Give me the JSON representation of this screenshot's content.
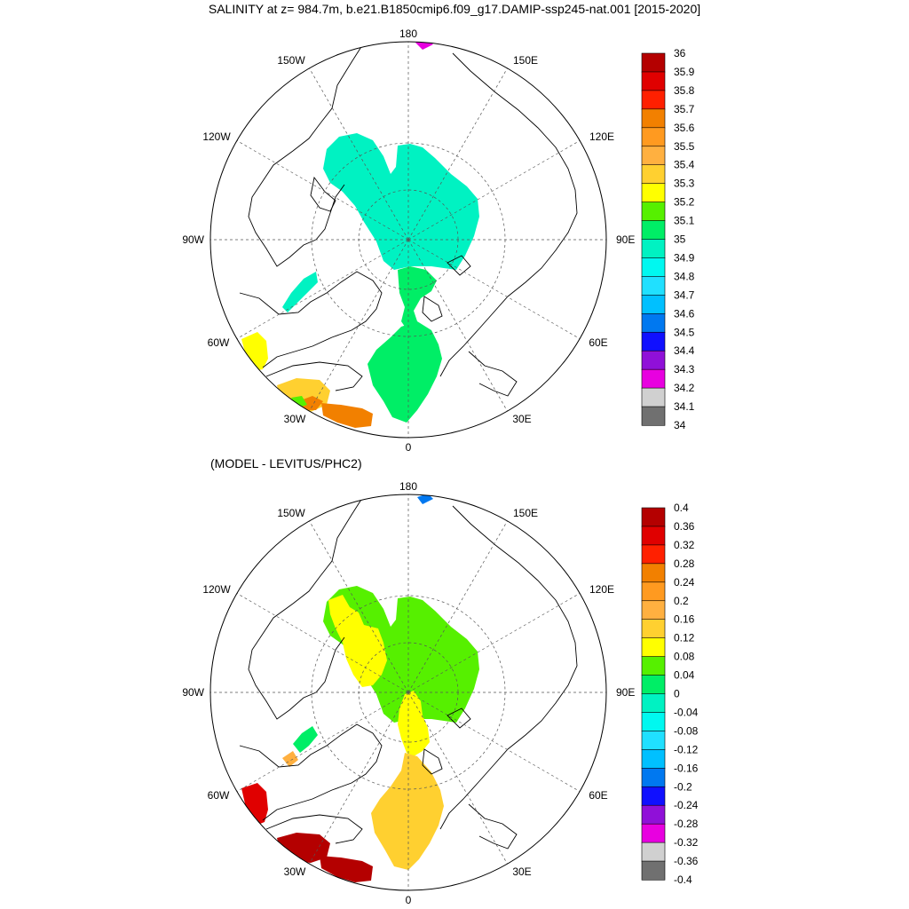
{
  "panels": [
    {
      "id": "top",
      "title": "SALINITY at z= 984.7m, b.e21.B1850cmip6.f09_g17.DAMIP-ssp245-nat.001 [2015-2020]",
      "lon_labels": [
        "180",
        "150E",
        "120E",
        "90E",
        "60E",
        "30E",
        "0",
        "30W",
        "60W",
        "90W",
        "120W",
        "150W"
      ],
      "colorbar": {
        "labels": [
          "36",
          "35.9",
          "35.8",
          "35.7",
          "35.6",
          "35.5",
          "35.4",
          "35.3",
          "35.2",
          "35.1",
          "35",
          "34.9",
          "34.8",
          "34.7",
          "34.6",
          "34.5",
          "34.4",
          "34.3",
          "34.2",
          "34.1",
          "34"
        ],
        "colors": [
          "#b40000",
          "#e00000",
          "#ff2000",
          "#f28000",
          "#ff9a20",
          "#ffb040",
          "#ffd030",
          "#ffff00",
          "#56f000",
          "#00ee66",
          "#00f2c2",
          "#00f8f0",
          "#20e0ff",
          "#00c0ff",
          "#0078f0",
          "#1010ff",
          "#9010d8",
          "#e800e0",
          "#d0d0d0",
          "#707070"
        ]
      },
      "regions": [
        {
          "name": "siberian-basin-fill",
          "value_label": "34.9",
          "color": "#00f2c2"
        },
        {
          "name": "fram-strait-fill",
          "value_label": "35.1",
          "color": "#00ee66"
        },
        {
          "name": "norwegian-sea-fill",
          "value_label": "35.1",
          "color": "#00ee66"
        },
        {
          "name": "baffin-bay-fill",
          "value_label": "34.9",
          "color": "#00f2c2"
        },
        {
          "name": "labrador-sea-fill",
          "value_label": "35.3",
          "color": "#ffff00"
        },
        {
          "name": "irminger-sea-fill",
          "value_label": "35.4",
          "color": "#ffd030"
        },
        {
          "name": "iceland-basin-fill",
          "value_label": "35.6",
          "color": "#f28000"
        },
        {
          "name": "bering-spot-fill",
          "value_label": "34.3",
          "color": "#e800e0"
        }
      ]
    },
    {
      "id": "bottom",
      "title": "(MODEL - LEVITUS/PHC2)",
      "lon_labels": [
        "180",
        "150E",
        "120E",
        "90E",
        "60E",
        "30E",
        "0",
        "30W",
        "60W",
        "90W",
        "120W",
        "150W"
      ],
      "colorbar": {
        "labels": [
          "0.4",
          "0.36",
          "0.32",
          "0.28",
          "0.24",
          "0.2",
          "0.16",
          "0.12",
          "0.08",
          "0.04",
          "0",
          "-0.04",
          "-0.08",
          "-0.12",
          "-0.16",
          "-0.2",
          "-0.24",
          "-0.28",
          "-0.32",
          "-0.36",
          "-0.4"
        ],
        "colors": [
          "#b40000",
          "#e00000",
          "#ff2000",
          "#f28000",
          "#ff9a20",
          "#ffb040",
          "#ffd030",
          "#ffff00",
          "#56f000",
          "#00ee66",
          "#00f2c2",
          "#00f8f0",
          "#20e0ff",
          "#00c0ff",
          "#0078f0",
          "#1010ff",
          "#9010d8",
          "#e800e0",
          "#d0d0d0",
          "#707070"
        ]
      },
      "regions": [
        {
          "name": "siberian-basin-fill",
          "value_label": "0.08",
          "color": "#56f000"
        },
        {
          "name": "canada-basin-anomaly-fill",
          "value_label": "0.12",
          "color": "#ffff00"
        },
        {
          "name": "fram-strait-fill",
          "value_label": "0.12",
          "color": "#ffff00"
        },
        {
          "name": "norwegian-sea-fill",
          "value_label": "0.16",
          "color": "#ffd030"
        },
        {
          "name": "baffin-bay-fill",
          "value_label": "0.04",
          "color": "#00ee66"
        },
        {
          "name": "labrador-sea-fill",
          "value_label": "0.36",
          "color": "#e00000"
        },
        {
          "name": "irminger-sea-fill",
          "value_label": "0.4",
          "color": "#b40000"
        },
        {
          "name": "iceland-basin-fill",
          "value_label": "0.4",
          "color": "#b40000"
        },
        {
          "name": "bering-spot-fill",
          "value_label": "-0.16",
          "color": "#0078f0"
        }
      ]
    }
  ]
}
